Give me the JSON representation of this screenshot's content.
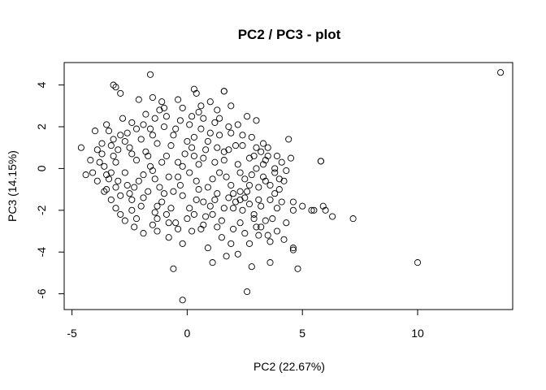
{
  "chart_data": {
    "type": "scatter",
    "title": "PC2 / PC3 - plot",
    "xlabel": "PC2 (22.67%)",
    "ylabel": "PC3 (14.15%)",
    "xlim": [
      -5,
      14
    ],
    "ylim": [
      -6.5,
      5
    ],
    "xticks": [
      -5,
      0,
      5,
      10
    ],
    "yticks": [
      -6,
      -4,
      -2,
      0,
      2,
      4
    ],
    "grid": false,
    "legend": "none",
    "marker": "open-circle",
    "colors": {
      "marker": "#000000",
      "axes": "#000000",
      "background": "#ffffff"
    },
    "series": [
      {
        "points": [
          [
            13.6,
            4.6
          ],
          [
            10.0,
            -4.5
          ],
          [
            7.2,
            -2.4
          ],
          [
            6.3,
            -2.3
          ],
          [
            6.0,
            -2.0
          ],
          [
            5.9,
            -1.8
          ],
          [
            5.8,
            0.35
          ],
          [
            5.8,
            0.35
          ],
          [
            5.5,
            -2.0
          ],
          [
            5.4,
            -2.0
          ],
          [
            5.0,
            -1.8
          ],
          [
            4.8,
            -4.8
          ],
          [
            4.6,
            -3.8
          ],
          [
            4.6,
            -3.9
          ],
          [
            4.6,
            -2.0
          ],
          [
            4.6,
            -1.6
          ],
          [
            4.5,
            0.5
          ],
          [
            4.4,
            1.4
          ],
          [
            4.3,
            -0.1
          ],
          [
            4.2,
            -0.6
          ],
          [
            4.0,
            -1.0
          ],
          [
            3.9,
            -1.9
          ],
          [
            3.9,
            0.6
          ],
          [
            3.8,
            -0.2
          ],
          [
            3.7,
            -2.4
          ],
          [
            3.6,
            -3.5
          ],
          [
            3.6,
            -4.5
          ],
          [
            3.5,
            -3.2
          ],
          [
            3.4,
            -0.6
          ],
          [
            3.4,
            0.4
          ],
          [
            3.3,
            1.2
          ],
          [
            3.2,
            -2.8
          ],
          [
            3.1,
            -1.5
          ],
          [
            3.0,
            -2.8
          ],
          [
            3.0,
            2.3
          ],
          [
            2.8,
            -4.7
          ],
          [
            2.6,
            -5.9
          ],
          [
            2.5,
            -3.1
          ],
          [
            2.4,
            -2.0
          ],
          [
            2.2,
            2.1
          ],
          [
            2.0,
            -1.2
          ],
          [
            1.9,
            3.0
          ],
          [
            1.6,
            3.7
          ],
          [
            1.6,
            3.7
          ],
          [
            1.5,
            -3.3
          ],
          [
            1.3,
            2.8
          ],
          [
            1.1,
            -4.5
          ],
          [
            0.9,
            -3.8
          ],
          [
            0.7,
            -2.7
          ],
          [
            0.4,
            3.6
          ],
          [
            0.3,
            3.8
          ],
          [
            -0.2,
            -3.6
          ],
          [
            -0.2,
            -6.3
          ],
          [
            -0.6,
            -4.8
          ],
          [
            -0.8,
            -3.3
          ],
          [
            -1.3,
            -3.0
          ],
          [
            -1.5,
            3.4
          ],
          [
            -1.6,
            4.5
          ],
          [
            -1.9,
            -3.1
          ],
          [
            -2.1,
            3.3
          ],
          [
            -2.7,
            -2.5
          ],
          [
            -2.9,
            3.6
          ],
          [
            -3.1,
            3.9
          ],
          [
            -3.2,
            4.0
          ],
          [
            -3.4,
            1.8
          ],
          [
            -3.5,
            2.1
          ],
          [
            -3.5,
            -1.0
          ],
          [
            -3.9,
            0.9
          ],
          [
            -4.0,
            1.8
          ],
          [
            -4.6,
            1.0
          ],
          [
            -4.4,
            -0.3
          ],
          [
            -3.1,
            -1.9
          ],
          [
            -2.4,
            -2.0
          ],
          [
            -1.8,
            2.6
          ],
          [
            -1.1,
            3.2
          ],
          [
            -0.4,
            3.3
          ],
          [
            1.0,
            3.2
          ],
          [
            2.6,
            2.5
          ],
          [
            2.2,
            -4.1
          ],
          [
            1.9,
            -3.6
          ],
          [
            1.7,
            -4.2
          ],
          [
            0.2,
            -3.0
          ],
          [
            -2.2,
            -2.4
          ],
          [
            3.5,
            1.0
          ],
          [
            4.1,
            0.3
          ],
          [
            2.9,
            -2.4
          ],
          [
            3.1,
            -3.2
          ],
          [
            2.7,
            -3.6
          ],
          [
            -0.9,
            -2.2
          ],
          [
            -3.3,
            -0.2
          ],
          [
            -3.8,
            0.3
          ],
          [
            -3.7,
            1.2
          ],
          [
            -2.8,
            2.4
          ],
          [
            -1.2,
            2.8
          ],
          [
            0.5,
            2.7
          ],
          [
            2.4,
            1.6
          ],
          [
            3.3,
            0.2
          ],
          [
            2.3,
            -1.5
          ],
          [
            0.8,
            -2.3
          ],
          [
            -1.4,
            -2.1
          ],
          [
            -2.9,
            -1.3
          ],
          [
            -3.2,
            0.6
          ],
          [
            -2.6,
            1.7
          ],
          [
            -0.3,
            2.3
          ],
          [
            1.8,
            2.0
          ],
          [
            3.0,
            1.0
          ],
          [
            3.1,
            -0.9
          ],
          [
            1.5,
            -2.5
          ],
          [
            -0.5,
            -2.6
          ],
          [
            -2.4,
            -1.5
          ],
          [
            -3.0,
            -0.6
          ],
          [
            -2.5,
            1.0
          ],
          [
            -1.0,
            2.0
          ],
          [
            1.2,
            2.2
          ],
          [
            2.7,
            0.5
          ],
          [
            2.0,
            -1.9
          ],
          [
            0.0,
            -2.4
          ],
          [
            -2.0,
            -1.8
          ],
          [
            -2.2,
            0.4
          ],
          [
            -1.5,
            1.6
          ],
          [
            0.6,
            1.9
          ],
          [
            2.1,
            1.1
          ],
          [
            2.5,
            -0.5
          ],
          [
            1.0,
            -1.8
          ],
          [
            -1.1,
            -1.6
          ],
          [
            -1.9,
            -0.3
          ],
          [
            -1.3,
            1.2
          ],
          [
            0.3,
            1.5
          ],
          [
            1.6,
            0.8
          ],
          [
            1.9,
            -0.8
          ],
          [
            0.4,
            -1.5
          ],
          [
            -1.2,
            -0.9
          ],
          [
            -0.9,
            0.6
          ],
          [
            0.2,
            1.0
          ],
          [
            1.2,
            0.3
          ],
          [
            0.9,
            -0.9
          ],
          [
            -0.3,
            -0.8
          ],
          [
            -0.4,
            0.3
          ],
          [
            0.5,
            0.2
          ],
          [
            0.1,
            -0.2
          ],
          [
            -0.8,
            -0.4
          ],
          [
            0.8,
            0.9
          ],
          [
            1.4,
            -0.2
          ],
          [
            -1.6,
            0.1
          ],
          [
            -2.7,
            -0.2
          ],
          [
            -3.4,
            -0.5
          ],
          [
            -3.6,
            0.1
          ],
          [
            -3.0,
            0.9
          ],
          [
            -2.0,
            1.4
          ],
          [
            -0.6,
            1.6
          ],
          [
            1.4,
            1.6
          ],
          [
            2.2,
            0.2
          ],
          [
            2.8,
            -0.3
          ],
          [
            2.6,
            -1.1
          ],
          [
            1.3,
            -1.2
          ],
          [
            -0.2,
            -1.3
          ],
          [
            -1.7,
            -1.1
          ],
          [
            -2.6,
            -0.8
          ],
          [
            -2.3,
            -0.9
          ],
          [
            -1.8,
            0.8
          ],
          [
            -0.1,
            0.7
          ],
          [
            1.7,
            -0.4
          ],
          [
            3.6,
            -0.8
          ],
          [
            3.2,
            -1.8
          ],
          [
            2.9,
            -2.2
          ],
          [
            2.7,
            -1.7
          ],
          [
            2.3,
            -2.6
          ],
          [
            2.0,
            -2.9
          ],
          [
            1.3,
            -2.8
          ],
          [
            0.6,
            -2.9
          ],
          [
            -0.4,
            -2.9
          ],
          [
            -1.5,
            -2.7
          ],
          [
            -2.3,
            -2.8
          ],
          [
            -2.9,
            -2.2
          ],
          [
            -3.3,
            -1.5
          ],
          [
            -3.6,
            -1.1
          ],
          [
            -4.1,
            -0.2
          ],
          [
            -3.9,
            -0.6
          ],
          [
            -3.3,
            1.1
          ],
          [
            -2.9,
            1.6
          ],
          [
            -2.4,
            2.2
          ],
          [
            -1.9,
            2.1
          ],
          [
            -1.4,
            2.4
          ],
          [
            -0.9,
            2.5
          ],
          [
            -0.2,
            2.9
          ],
          [
            0.7,
            2.4
          ],
          [
            1.4,
            2.4
          ],
          [
            1.9,
            1.7
          ],
          [
            2.4,
            1.1
          ],
          [
            2.9,
            0.6
          ],
          [
            3.0,
            0.0
          ],
          [
            3.3,
            -0.4
          ],
          [
            3.8,
            -1.2
          ],
          [
            4.1,
            -1.6
          ],
          [
            4.3,
            -2.6
          ],
          [
            4.2,
            -3.4
          ],
          [
            3.9,
            -3.0
          ],
          [
            3.4,
            -2.5
          ],
          [
            0.1,
            2.1
          ],
          [
            -0.7,
            1.1
          ],
          [
            0.9,
            1.3
          ],
          [
            1.1,
            -0.5
          ],
          [
            -0.6,
            -1.1
          ],
          [
            -1.4,
            -0.5
          ],
          [
            -2.1,
            -0.6
          ],
          [
            -1.0,
            -1.2
          ],
          [
            0.4,
            -0.6
          ],
          [
            1.6,
            0.4
          ],
          [
            2.3,
            -0.2
          ],
          [
            1.8,
            0.9
          ],
          [
            0.7,
            0.5
          ],
          [
            -0.2,
            0.1
          ],
          [
            -1.1,
            0.3
          ],
          [
            -1.7,
            0.6
          ],
          [
            -2.4,
            0.7
          ],
          [
            -3.1,
            0.3
          ],
          [
            -3.5,
            -0.3
          ],
          [
            -3.1,
            -0.9
          ],
          [
            -2.5,
            -1.2
          ],
          [
            -1.9,
            -1.4
          ],
          [
            -1.3,
            -1.8
          ],
          [
            -0.7,
            -1.9
          ],
          [
            0.1,
            -1.9
          ],
          [
            0.7,
            -1.6
          ],
          [
            1.2,
            -1.5
          ],
          [
            1.8,
            -1.4
          ],
          [
            2.3,
            -1.1
          ],
          [
            2.7,
            -0.8
          ],
          [
            -0.5,
            1.9
          ],
          [
            0.2,
            2.5
          ],
          [
            1.0,
            1.7
          ],
          [
            -1.6,
            1.9
          ],
          [
            -2.2,
            1.9
          ],
          [
            -2.7,
            1.3
          ],
          [
            -0.8,
            -2.6
          ],
          [
            0.3,
            -2.2
          ],
          [
            1.1,
            -2.2
          ],
          [
            1.6,
            -1.9
          ],
          [
            2.1,
            -1.6
          ],
          [
            2.5,
            -1.4
          ],
          [
            -3.7,
            0.7
          ],
          [
            -3.2,
            1.4
          ],
          [
            -4.2,
            0.4
          ],
          [
            -1.3,
            -2.4
          ],
          [
            -1.0,
            2.9
          ],
          [
            0.6,
            3.0
          ],
          [
            3.5,
            0.6
          ],
          [
            3.8,
            0.0
          ],
          [
            4.0,
            -0.5
          ],
          [
            3.6,
            -1.5
          ],
          [
            3.2,
            0.8
          ],
          [
            2.8,
            1.5
          ],
          [
            0.0,
            1.3
          ],
          [
            0.5,
            -1.0
          ],
          [
            -0.4,
            -0.4
          ],
          [
            0.3,
            0.6
          ],
          [
            1.3,
            1.0
          ],
          [
            -1.5,
            -0.1
          ]
        ]
      }
    ]
  }
}
